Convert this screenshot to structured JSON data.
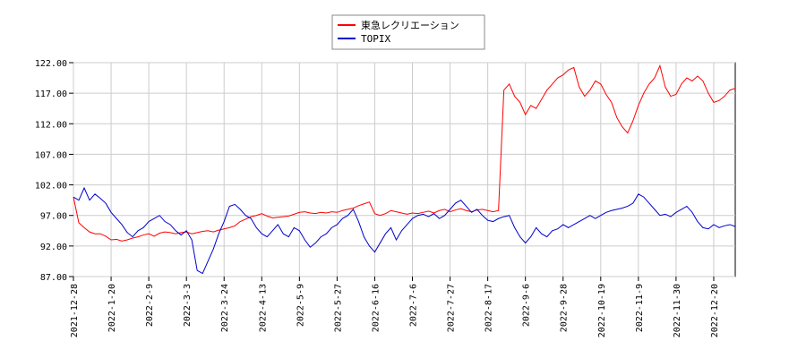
{
  "chart_data": {
    "type": "line",
    "title": "",
    "xlabel": "",
    "ylabel": "",
    "ylim": [
      87.0,
      122.0
    ],
    "yticks": [
      "87.00",
      "92.00",
      "97.00",
      "102.00",
      "107.00",
      "112.00",
      "117.00",
      "122.00"
    ],
    "xticks": [
      "2021-12-28",
      "2022-1-20",
      "2022-2-9",
      "2022-3-3",
      "2022-3-24",
      "2022-4-13",
      "2022-5-9",
      "2022-5-27",
      "2022-6-16",
      "2022-7-6",
      "2022-7-27",
      "2022-8-17",
      "2022-9-6",
      "2022-9-28",
      "2022-10-19",
      "2022-11-9",
      "2022-11-30",
      "2022-12-20"
    ],
    "grid": true,
    "legend_position": "top-center",
    "series": [
      {
        "name": "東急レクリエーション",
        "color": "#ff0000",
        "points": [
          [
            0,
            100.0
          ],
          [
            1,
            95.8
          ],
          [
            2,
            95.0
          ],
          [
            3,
            94.3
          ],
          [
            4,
            94.0
          ],
          [
            5,
            94.0
          ],
          [
            6,
            93.6
          ],
          [
            7,
            93.0
          ],
          [
            8,
            93.1
          ],
          [
            9,
            92.8
          ],
          [
            10,
            93.0
          ],
          [
            11,
            93.3
          ],
          [
            12,
            93.5
          ],
          [
            13,
            93.8
          ],
          [
            14,
            94.0
          ],
          [
            15,
            93.6
          ],
          [
            16,
            94.1
          ],
          [
            17,
            94.3
          ],
          [
            18,
            94.2
          ],
          [
            19,
            94.0
          ],
          [
            20,
            94.2
          ],
          [
            21,
            94.3
          ],
          [
            22,
            94.0
          ],
          [
            23,
            94.2
          ],
          [
            24,
            94.4
          ],
          [
            25,
            94.5
          ],
          [
            26,
            94.3
          ],
          [
            27,
            94.6
          ],
          [
            28,
            94.8
          ],
          [
            29,
            95.0
          ],
          [
            30,
            95.3
          ],
          [
            31,
            96.0
          ],
          [
            32,
            96.4
          ],
          [
            33,
            96.8
          ],
          [
            34,
            97.0
          ],
          [
            35,
            97.3
          ],
          [
            36,
            96.9
          ],
          [
            37,
            96.6
          ],
          [
            38,
            96.7
          ],
          [
            39,
            96.8
          ],
          [
            40,
            96.9
          ],
          [
            41,
            97.2
          ],
          [
            42,
            97.5
          ],
          [
            43,
            97.6
          ],
          [
            44,
            97.4
          ],
          [
            45,
            97.3
          ],
          [
            46,
            97.5
          ],
          [
            47,
            97.4
          ],
          [
            48,
            97.6
          ],
          [
            49,
            97.5
          ],
          [
            50,
            97.8
          ],
          [
            51,
            98.0
          ],
          [
            52,
            98.2
          ],
          [
            53,
            98.6
          ],
          [
            54,
            98.9
          ],
          [
            55,
            99.2
          ],
          [
            56,
            97.3
          ],
          [
            57,
            97.0
          ],
          [
            58,
            97.3
          ],
          [
            59,
            97.8
          ],
          [
            60,
            97.6
          ],
          [
            61,
            97.4
          ],
          [
            62,
            97.2
          ],
          [
            63,
            97.4
          ],
          [
            64,
            97.3
          ],
          [
            65,
            97.5
          ],
          [
            66,
            97.7
          ],
          [
            67,
            97.4
          ],
          [
            68,
            97.8
          ],
          [
            69,
            98.0
          ],
          [
            70,
            97.6
          ],
          [
            71,
            97.9
          ],
          [
            72,
            98.1
          ],
          [
            73,
            97.8
          ],
          [
            74,
            97.6
          ],
          [
            75,
            97.9
          ],
          [
            76,
            98.0
          ],
          [
            77,
            97.8
          ],
          [
            78,
            97.6
          ],
          [
            79,
            97.8
          ],
          [
            80,
            117.5
          ],
          [
            81,
            118.5
          ],
          [
            82,
            116.5
          ],
          [
            83,
            115.5
          ],
          [
            84,
            113.5
          ],
          [
            85,
            115.0
          ],
          [
            86,
            114.5
          ],
          [
            87,
            116.0
          ],
          [
            88,
            117.5
          ],
          [
            89,
            118.5
          ],
          [
            90,
            119.5
          ],
          [
            91,
            120.0
          ],
          [
            92,
            120.8
          ],
          [
            93,
            121.2
          ],
          [
            94,
            118.0
          ],
          [
            95,
            116.5
          ],
          [
            96,
            117.5
          ],
          [
            97,
            119.0
          ],
          [
            98,
            118.5
          ],
          [
            99,
            116.8
          ],
          [
            100,
            115.5
          ],
          [
            101,
            113.0
          ],
          [
            102,
            111.5
          ],
          [
            103,
            110.5
          ],
          [
            104,
            112.5
          ],
          [
            105,
            115.0
          ],
          [
            106,
            117.0
          ],
          [
            107,
            118.5
          ],
          [
            108,
            119.5
          ],
          [
            109,
            121.5
          ],
          [
            110,
            118.0
          ],
          [
            111,
            116.5
          ],
          [
            112,
            116.8
          ],
          [
            113,
            118.5
          ],
          [
            114,
            119.5
          ],
          [
            115,
            119.0
          ],
          [
            116,
            119.8
          ],
          [
            117,
            119.0
          ],
          [
            118,
            117.0
          ],
          [
            119,
            115.5
          ],
          [
            120,
            115.8
          ],
          [
            121,
            116.5
          ],
          [
            122,
            117.5
          ],
          [
            123,
            117.8
          ]
        ]
      },
      {
        "name": "TOPIX",
        "color": "#0000cc",
        "points": [
          [
            0,
            100.0
          ],
          [
            1,
            99.5
          ],
          [
            2,
            101.5
          ],
          [
            3,
            99.5
          ],
          [
            4,
            100.5
          ],
          [
            5,
            99.8
          ],
          [
            6,
            99.0
          ],
          [
            7,
            97.5
          ],
          [
            8,
            96.5
          ],
          [
            9,
            95.5
          ],
          [
            10,
            94.2
          ],
          [
            11,
            93.5
          ],
          [
            12,
            94.5
          ],
          [
            13,
            95.0
          ],
          [
            14,
            96.0
          ],
          [
            15,
            96.5
          ],
          [
            16,
            97.0
          ],
          [
            17,
            96.0
          ],
          [
            18,
            95.5
          ],
          [
            19,
            94.5
          ],
          [
            20,
            93.8
          ],
          [
            21,
            94.5
          ],
          [
            22,
            93.0
          ],
          [
            23,
            88.0
          ],
          [
            24,
            87.5
          ],
          [
            25,
            89.5
          ],
          [
            26,
            91.5
          ],
          [
            27,
            94.0
          ],
          [
            28,
            96.0
          ],
          [
            29,
            98.5
          ],
          [
            30,
            98.8
          ],
          [
            31,
            98.0
          ],
          [
            32,
            97.0
          ],
          [
            33,
            96.5
          ],
          [
            34,
            95.0
          ],
          [
            35,
            94.0
          ],
          [
            36,
            93.5
          ],
          [
            37,
            94.5
          ],
          [
            38,
            95.5
          ],
          [
            39,
            94.0
          ],
          [
            40,
            93.5
          ],
          [
            41,
            95.0
          ],
          [
            42,
            94.5
          ],
          [
            43,
            93.0
          ],
          [
            44,
            91.8
          ],
          [
            45,
            92.5
          ],
          [
            46,
            93.5
          ],
          [
            47,
            94.0
          ],
          [
            48,
            95.0
          ],
          [
            49,
            95.5
          ],
          [
            50,
            96.5
          ],
          [
            51,
            97.0
          ],
          [
            52,
            98.0
          ],
          [
            53,
            96.0
          ],
          [
            54,
            93.5
          ],
          [
            55,
            92.0
          ],
          [
            56,
            91.0
          ],
          [
            57,
            92.5
          ],
          [
            58,
            94.0
          ],
          [
            59,
            95.0
          ],
          [
            60,
            93.0
          ],
          [
            61,
            94.5
          ],
          [
            62,
            95.5
          ],
          [
            63,
            96.5
          ],
          [
            64,
            97.0
          ],
          [
            65,
            97.2
          ],
          [
            66,
            96.8
          ],
          [
            67,
            97.3
          ],
          [
            68,
            96.5
          ],
          [
            69,
            97.0
          ],
          [
            70,
            98.0
          ],
          [
            71,
            99.0
          ],
          [
            72,
            99.5
          ],
          [
            73,
            98.5
          ],
          [
            74,
            97.5
          ],
          [
            75,
            98.0
          ],
          [
            76,
            97.0
          ],
          [
            77,
            96.2
          ],
          [
            78,
            96.0
          ],
          [
            79,
            96.5
          ],
          [
            80,
            96.8
          ],
          [
            81,
            97.0
          ],
          [
            82,
            95.0
          ],
          [
            83,
            93.5
          ],
          [
            84,
            92.5
          ],
          [
            85,
            93.5
          ],
          [
            86,
            95.0
          ],
          [
            87,
            94.0
          ],
          [
            88,
            93.5
          ],
          [
            89,
            94.5
          ],
          [
            90,
            94.8
          ],
          [
            91,
            95.5
          ],
          [
            92,
            95.0
          ],
          [
            93,
            95.5
          ],
          [
            94,
            96.0
          ],
          [
            95,
            96.5
          ],
          [
            96,
            97.0
          ],
          [
            97,
            96.5
          ],
          [
            98,
            97.0
          ],
          [
            99,
            97.5
          ],
          [
            100,
            97.8
          ],
          [
            101,
            98.0
          ],
          [
            102,
            98.2
          ],
          [
            103,
            98.5
          ],
          [
            104,
            99.0
          ],
          [
            105,
            100.5
          ],
          [
            106,
            100.0
          ],
          [
            107,
            99.0
          ],
          [
            108,
            98.0
          ],
          [
            109,
            97.0
          ],
          [
            110,
            97.2
          ],
          [
            111,
            96.8
          ],
          [
            112,
            97.5
          ],
          [
            113,
            98.0
          ],
          [
            114,
            98.5
          ],
          [
            115,
            97.5
          ],
          [
            116,
            96.0
          ],
          [
            117,
            95.0
          ],
          [
            118,
            94.8
          ],
          [
            119,
            95.5
          ],
          [
            120,
            95.0
          ],
          [
            121,
            95.3
          ],
          [
            122,
            95.5
          ],
          [
            123,
            95.2
          ]
        ]
      }
    ],
    "x_count": 124,
    "xtick_indices": [
      0,
      7,
      14,
      21,
      28,
      35,
      42,
      49,
      56,
      63,
      70,
      77,
      84,
      91,
      98,
      105,
      112,
      119
    ]
  }
}
